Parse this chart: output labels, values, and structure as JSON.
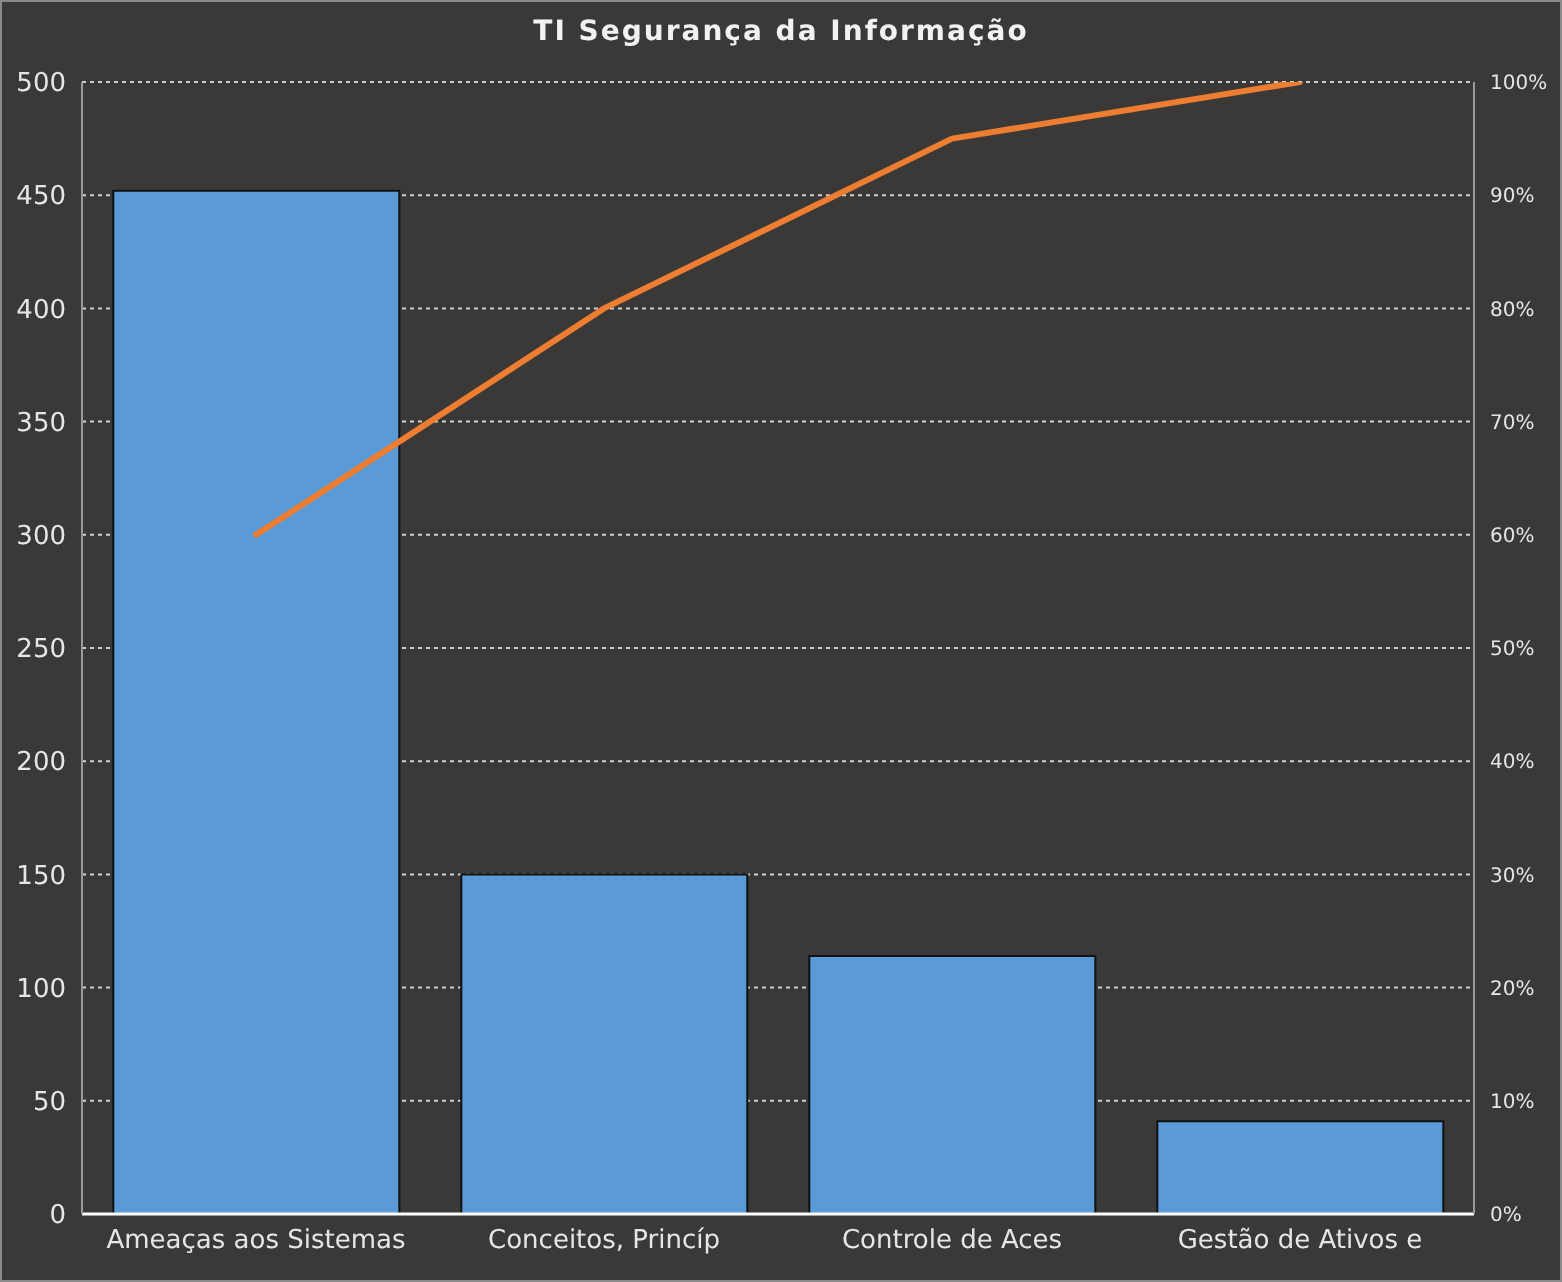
{
  "chart_data": {
    "type": "bar",
    "title": "TI Segurança da Informação",
    "categories": [
      "Ameaças aos Sistemas",
      "Conceitos, Princíp",
      "Controle de Aces",
      "Gestão de Ativos e"
    ],
    "series": [
      {
        "color": "#5a9ad6",
        "values": [
          452,
          150,
          114,
          41
        ]
      },
      {
        "type": "line",
        "axis": "y2",
        "color": "#ed7d31",
        "values": [
          60,
          80,
          95,
          100
        ]
      }
    ],
    "ylim": [
      0,
      500
    ],
    "yticks": [
      0,
      50,
      100,
      150,
      200,
      250,
      300,
      350,
      400,
      450,
      500
    ],
    "y2lim": [
      0,
      100
    ],
    "y2ticks": [
      {
        "value": 0,
        "label": "0%"
      },
      {
        "value": 10,
        "label": "10%"
      },
      {
        "value": 20,
        "label": "20%"
      },
      {
        "value": 30,
        "label": "30%"
      },
      {
        "value": 40,
        "label": "40%"
      },
      {
        "value": 50,
        "label": "50%"
      },
      {
        "value": 60,
        "label": "60%"
      },
      {
        "value": 70,
        "label": "70%"
      },
      {
        "value": 80,
        "label": "80%"
      },
      {
        "value": 90,
        "label": "90%"
      },
      {
        "value": 100,
        "label": "100%"
      }
    ],
    "grid": "y",
    "marker": "none"
  }
}
